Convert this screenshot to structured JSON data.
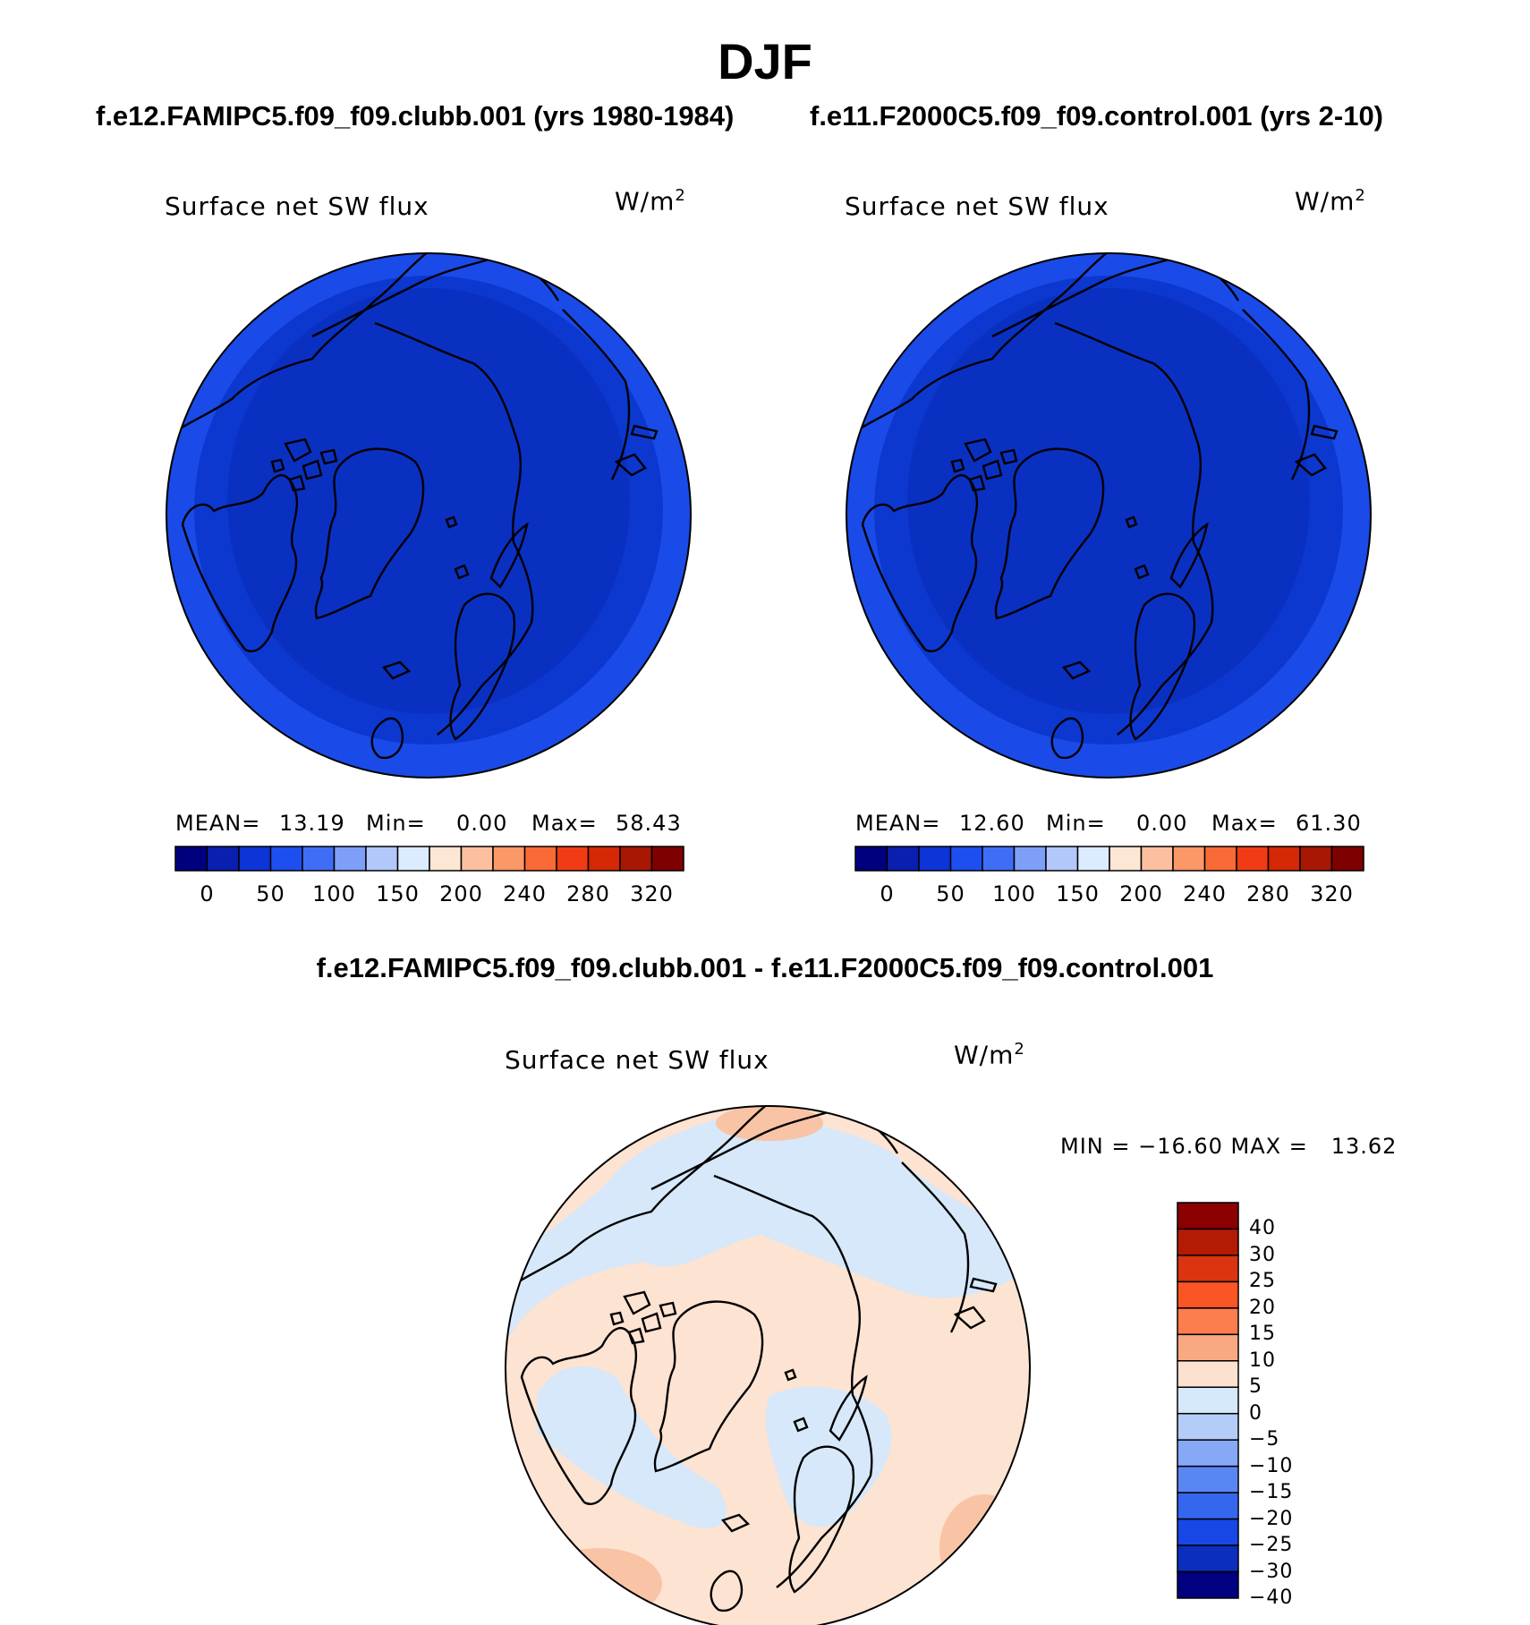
{
  "title": "DJF",
  "panels": [
    {
      "case_title": "f.e12.FAMIPC5.f09_f09.clubb.001 (yrs 1980-1984)",
      "plot_title": "Surface net SW flux",
      "units": "W/m",
      "units_exp": "2",
      "stats": {
        "mean_label": "MEAN=",
        "mean": "13.19",
        "min_label": "Min=",
        "min": "0.00",
        "max_label": "Max=",
        "max": "58.43"
      }
    },
    {
      "case_title": "f.e11.F2000C5.f09_f09.control.001 (yrs 2-10)",
      "plot_title": "Surface net SW flux",
      "units": "W/m",
      "units_exp": "2",
      "stats": {
        "mean_label": "MEAN=",
        "mean": "12.60",
        "min_label": "Min=",
        "min": "0.00",
        "max_label": "Max=",
        "max": "61.30"
      }
    }
  ],
  "diff": {
    "title": "f.e12.FAMIPC5.f09_f09.clubb.001 - f.e11.F2000C5.f09_f09.control.001",
    "plot_title": "Surface net SW flux",
    "units": "W/m",
    "units_exp": "2",
    "minmax": "MIN = −16.60 MAX =   13.62"
  },
  "colors": {
    "field_inner": "#0A34C8",
    "field_outer": "#1846E6",
    "field_edge": "#2A5CF2",
    "diff_pos": "#FDE3D2",
    "diff_pos2": "#F9C3A6",
    "diff_neg": "#D6E8FA",
    "coast": "#000000"
  },
  "chart_data": [
    {
      "type": "heatmap",
      "projection": "polar-stereographic north",
      "title": "Surface net SW flux",
      "units": "W/m2",
      "case": "f.e12.FAMIPC5.f09_f09.clubb.001 (yrs 1980-1984)",
      "mean": 13.19,
      "min": 0.0,
      "max": 58.43,
      "colorbar_ticks": [
        "0",
        "50",
        "100",
        "150",
        "200",
        "240",
        "280",
        "320"
      ],
      "colorbar_colors": [
        "#00007F",
        "#0A1FAF",
        "#0D34D6",
        "#1D4FF0",
        "#3F6DF5",
        "#7E9FF8",
        "#B2C8FA",
        "#DCEBFD",
        "#FDE6D4",
        "#FCC0A0",
        "#FB9868",
        "#FA6A36",
        "#F03B14",
        "#D42806",
        "#A81703",
        "#7F0000"
      ]
    },
    {
      "type": "heatmap",
      "projection": "polar-stereographic north",
      "title": "Surface net SW flux",
      "units": "W/m2",
      "case": "f.e11.F2000C5.f09_f09.control.001 (yrs 2-10)",
      "mean": 12.6,
      "min": 0.0,
      "max": 61.3,
      "colorbar_ticks": [
        "0",
        "50",
        "100",
        "150",
        "200",
        "240",
        "280",
        "320"
      ],
      "colorbar_colors": [
        "#00007F",
        "#0A1FAF",
        "#0D34D6",
        "#1D4FF0",
        "#3F6DF5",
        "#7E9FF8",
        "#B2C8FA",
        "#DCEBFD",
        "#FDE6D4",
        "#FCC0A0",
        "#FB9868",
        "#FA6A36",
        "#F03B14",
        "#D42806",
        "#A81703",
        "#7F0000"
      ]
    },
    {
      "type": "heatmap",
      "projection": "polar-stereographic north",
      "title": "Surface net SW flux (difference)",
      "units": "W/m2",
      "min": -16.6,
      "max": 13.62,
      "colorbar_ticks": [
        "40",
        "30",
        "25",
        "20",
        "15",
        "10",
        "5",
        "0",
        "−5",
        "−10",
        "−15",
        "−20",
        "−25",
        "−30",
        "−40"
      ],
      "colorbar_colors": [
        "#8B0000",
        "#B41A04",
        "#DA3510",
        "#FA5524",
        "#FB7E4C",
        "#F9A982",
        "#FDE1CF",
        "#D6E9FB",
        "#B3CCF8",
        "#86A8F6",
        "#5A86F3",
        "#3566EE",
        "#1747E4",
        "#0B2EBF",
        "#000080"
      ]
    }
  ]
}
